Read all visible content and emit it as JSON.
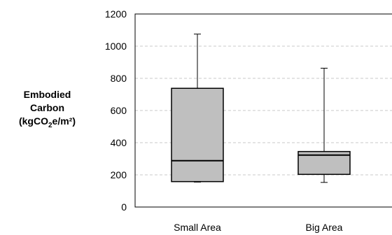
{
  "chart_data": {
    "type": "box",
    "ylabel_lines": [
      "Embodied",
      "Carbon"
    ],
    "ylabel_unit": {
      "pre": "(kgCO",
      "sub": "2",
      "post": "e/m²)"
    },
    "ylim": [
      0,
      1200
    ],
    "yticks": [
      0,
      200,
      400,
      600,
      800,
      1000,
      1200
    ],
    "grid": "horizontal-dashed",
    "categories": [
      "Small Area",
      "Big Area"
    ],
    "boxes": [
      {
        "label": "Small Area",
        "min": 155,
        "q1": 158,
        "median": 288,
        "q3": 738,
        "max": 1075
      },
      {
        "label": "Big Area",
        "min": 153,
        "q1": 203,
        "median": 323,
        "q3": 345,
        "max": 863
      }
    ],
    "box_color": "#bfbfbf"
  }
}
